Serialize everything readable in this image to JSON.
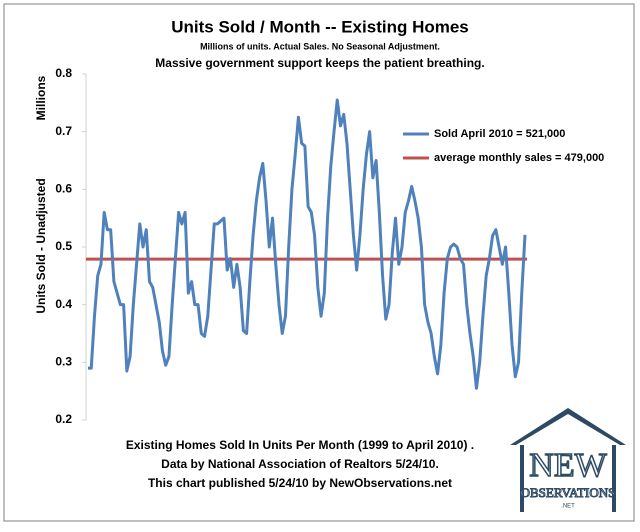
{
  "chart_data": {
    "type": "line",
    "title": "Units Sold / Month -- Existing Homes",
    "subtitle": "Millions of units. Actual Sales. No Seasonal Adjustment.",
    "headline": "Massive government support keeps the patient breathing.",
    "y_unit_label": "Millions",
    "y_axis_label": "Units Sold - Unadjusted",
    "footer": [
      "Existing Homes Sold In Units Per Month (1999 to April 2010) .",
      "Data by National Association of Realtors 5/24/10.",
      "This chart published 5/24/10 by NewObservations.net"
    ],
    "ylim": [
      0.2,
      0.8
    ],
    "yticks": [
      0.2,
      0.3,
      0.4,
      0.5,
      0.6,
      0.7,
      0.8
    ],
    "grid": false,
    "legend": "upper right",
    "series": [
      {
        "name": "Sold April 2010 = 521,000",
        "color": "#4f81bd",
        "values": [
          0.29,
          0.29,
          0.38,
          0.45,
          0.47,
          0.56,
          0.53,
          0.53,
          0.44,
          0.42,
          0.4,
          0.4,
          0.285,
          0.31,
          0.4,
          0.47,
          0.54,
          0.5,
          0.53,
          0.44,
          0.43,
          0.4,
          0.37,
          0.32,
          0.295,
          0.31,
          0.4,
          0.48,
          0.56,
          0.54,
          0.56,
          0.42,
          0.44,
          0.4,
          0.4,
          0.35,
          0.345,
          0.38,
          0.46,
          0.54,
          0.54,
          0.545,
          0.55,
          0.46,
          0.48,
          0.43,
          0.47,
          0.43,
          0.355,
          0.35,
          0.44,
          0.52,
          0.58,
          0.62,
          0.645,
          0.58,
          0.5,
          0.55,
          0.47,
          0.4,
          0.35,
          0.38,
          0.5,
          0.6,
          0.66,
          0.725,
          0.68,
          0.675,
          0.57,
          0.56,
          0.52,
          0.43,
          0.38,
          0.42,
          0.55,
          0.64,
          0.7,
          0.755,
          0.71,
          0.73,
          0.68,
          0.6,
          0.52,
          0.46,
          0.52,
          0.6,
          0.66,
          0.7,
          0.62,
          0.65,
          0.56,
          0.45,
          0.375,
          0.4,
          0.49,
          0.55,
          0.47,
          0.5,
          0.56,
          0.58,
          0.605,
          0.58,
          0.55,
          0.5,
          0.4,
          0.37,
          0.35,
          0.31,
          0.28,
          0.33,
          0.42,
          0.48,
          0.5,
          0.505,
          0.5,
          0.48,
          0.47,
          0.4,
          0.35,
          0.31,
          0.255,
          0.3,
          0.38,
          0.45,
          0.48,
          0.52,
          0.53,
          0.5,
          0.47,
          0.5,
          0.42,
          0.33,
          0.275,
          0.3,
          0.42,
          0.521
        ]
      }
    ],
    "reference_lines": [
      {
        "name": "average monthly sales = 479,000",
        "color": "#c0504d",
        "value": 0.479
      }
    ]
  },
  "logo": {
    "word": "NEW",
    "sub": "OBSERVATIONS",
    "suffix": ".NET"
  }
}
